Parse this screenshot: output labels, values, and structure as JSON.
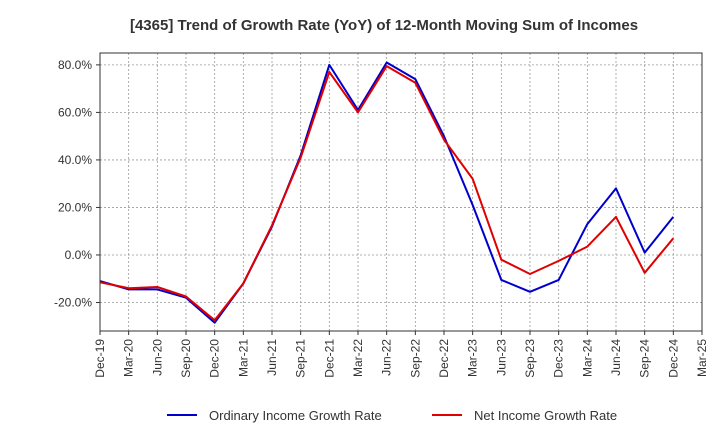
{
  "chart_data": {
    "type": "line",
    "title": "[4365]  Trend of Growth Rate (YoY) of 12-Month Moving Sum of Incomes",
    "xlabel": "",
    "ylabel": "",
    "x": [
      "Dec-19",
      "Mar-20",
      "Jun-20",
      "Sep-20",
      "Dec-20",
      "Mar-21",
      "Jun-21",
      "Sep-21",
      "Dec-21",
      "Mar-22",
      "Jun-22",
      "Sep-22",
      "Dec-22",
      "Mar-23",
      "Jun-23",
      "Sep-23",
      "Dec-23",
      "Mar-24",
      "Jun-24",
      "Sep-24",
      "Dec-24",
      "Mar-25"
    ],
    "ylim": [
      -32,
      85
    ],
    "yticks": [
      -20,
      0,
      20,
      40,
      60,
      80
    ],
    "ytick_labels": [
      "-20.0%",
      "0.0%",
      "20.0%",
      "40.0%",
      "60.0%",
      "80.0%"
    ],
    "grid": true,
    "legend_position": "bottom",
    "series": [
      {
        "name": "Ordinary Income Growth Rate",
        "color": "#0000cc",
        "values": [
          -11.0,
          -14.5,
          -14.5,
          -18.0,
          -28.5,
          -12.0,
          12.0,
          42.0,
          80.0,
          61.0,
          81.0,
          74.0,
          50.0,
          21.0,
          -10.5,
          -15.5,
          -10.5,
          13.0,
          28.0,
          1.0,
          16.0,
          null
        ]
      },
      {
        "name": "Net Income Growth Rate",
        "color": "#e00000",
        "values": [
          -11.5,
          -14.0,
          -13.5,
          -17.5,
          -27.5,
          -12.0,
          12.5,
          41.0,
          77.0,
          60.0,
          79.5,
          72.5,
          48.5,
          32.0,
          -2.0,
          -8.0,
          -2.5,
          3.5,
          16.0,
          -7.5,
          7.0,
          null
        ]
      }
    ]
  }
}
